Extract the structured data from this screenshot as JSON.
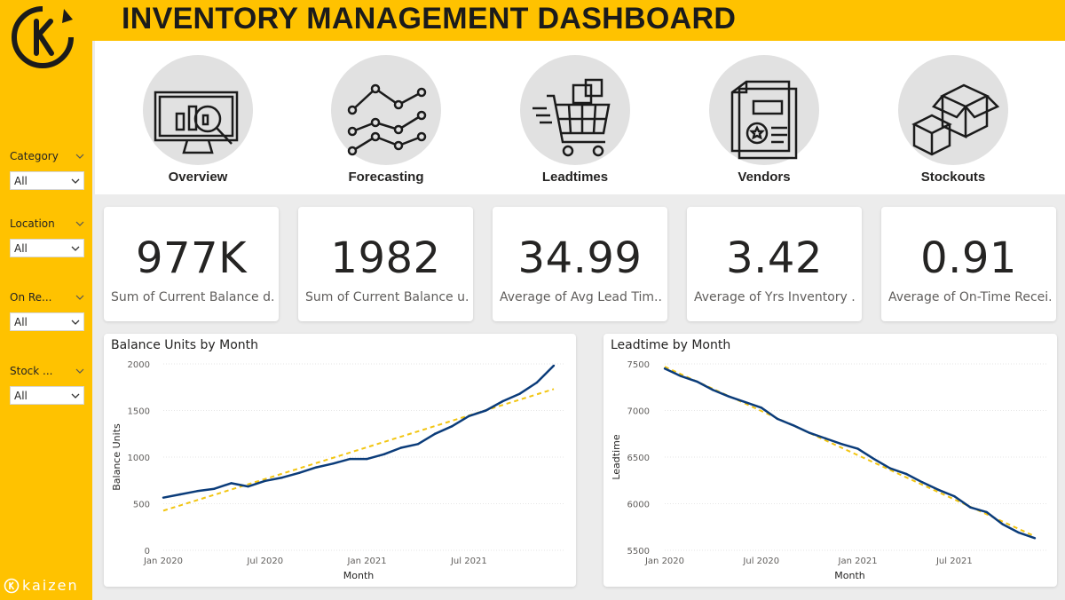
{
  "title": "INVENTORY MANAGEMENT DASHBOARD",
  "brand": {
    "text": "kaizen"
  },
  "colors": {
    "accent": "#ffc200",
    "line": "#0b3c7a",
    "trend": "#f2c511"
  },
  "filters": [
    {
      "label": "Category",
      "value": "All"
    },
    {
      "label": "Location",
      "value": "All"
    },
    {
      "label": "On Re...",
      "value": "All"
    },
    {
      "label": "Stock ...",
      "value": "All"
    }
  ],
  "nav": [
    {
      "label": "Overview",
      "icon": "monitor-chart-icon"
    },
    {
      "label": "Forecasting",
      "icon": "line-chart-icon"
    },
    {
      "label": "Leadtimes",
      "icon": "shopping-cart-icon"
    },
    {
      "label": "Vendors",
      "icon": "document-icon"
    },
    {
      "label": "Stockouts",
      "icon": "box-icon"
    }
  ],
  "kpis": [
    {
      "value": "977K",
      "label": "Sum of Current Balance d..."
    },
    {
      "value": "1982",
      "label": "Sum of Current Balance u..."
    },
    {
      "value": "34.99",
      "label": "Average of Avg Lead Tim..."
    },
    {
      "value": "3.42",
      "label": "Average of Yrs Inventory ..."
    },
    {
      "value": "0.91",
      "label": "Average of On-Time Recei..."
    }
  ],
  "chart_data": [
    {
      "type": "line",
      "title": "Balance Units by Month",
      "xlabel": "Month",
      "ylabel": "Balance Units",
      "x_ticks": [
        "Jan 2020",
        "Jul 2020",
        "Jan 2021",
        "Jul 2021"
      ],
      "y_ticks": [
        0,
        500,
        1000,
        1500,
        2000
      ],
      "ylim": [
        0,
        2000
      ],
      "x": [
        "Jan 2020",
        "Feb 2020",
        "Mar 2020",
        "Apr 2020",
        "May 2020",
        "Jun 2020",
        "Jul 2020",
        "Aug 2020",
        "Sep 2020",
        "Oct 2020",
        "Nov 2020",
        "Dec 2020",
        "Jan 2021",
        "Feb 2021",
        "Mar 2021",
        "Apr 2021",
        "May 2021",
        "Jun 2021",
        "Jul 2021",
        "Aug 2021",
        "Sep 2021",
        "Oct 2021",
        "Nov 2021",
        "Dec 2021"
      ],
      "series": [
        {
          "values": [
            565,
            600,
            635,
            660,
            720,
            685,
            745,
            780,
            830,
            890,
            930,
            980,
            980,
            1030,
            1100,
            1140,
            1250,
            1330,
            1440,
            1500,
            1600,
            1680,
            1800,
            1982
          ]
        }
      ],
      "trend": [
        425,
        1730
      ],
      "grid": true
    },
    {
      "type": "line",
      "title": "Leadtime by Month",
      "xlabel": "Month",
      "ylabel": "Leadtime",
      "x_ticks": [
        "Jan 2020",
        "Jul 2020",
        "Jan 2021",
        "Jul 2021"
      ],
      "y_ticks": [
        5500,
        6000,
        6500,
        7000,
        7500
      ],
      "ylim": [
        5500,
        7500
      ],
      "x": [
        "Jan 2020",
        "Feb 2020",
        "Mar 2020",
        "Apr 2020",
        "May 2020",
        "Jun 2020",
        "Jul 2020",
        "Aug 2020",
        "Sep 2020",
        "Oct 2020",
        "Nov 2020",
        "Dec 2020",
        "Jan 2021",
        "Feb 2021",
        "Mar 2021",
        "Apr 2021",
        "May 2021",
        "Jun 2021",
        "Jul 2021",
        "Aug 2021",
        "Sep 2021",
        "Oct 2021",
        "Nov 2021",
        "Dec 2021"
      ],
      "series": [
        {
          "values": [
            7450,
            7370,
            7310,
            7220,
            7150,
            7090,
            7030,
            6910,
            6840,
            6760,
            6700,
            6640,
            6590,
            6480,
            6380,
            6320,
            6230,
            6150,
            6080,
            5960,
            5910,
            5780,
            5690,
            5630
          ]
        }
      ],
      "trend": [
        7470,
        5650
      ],
      "grid": true
    }
  ]
}
